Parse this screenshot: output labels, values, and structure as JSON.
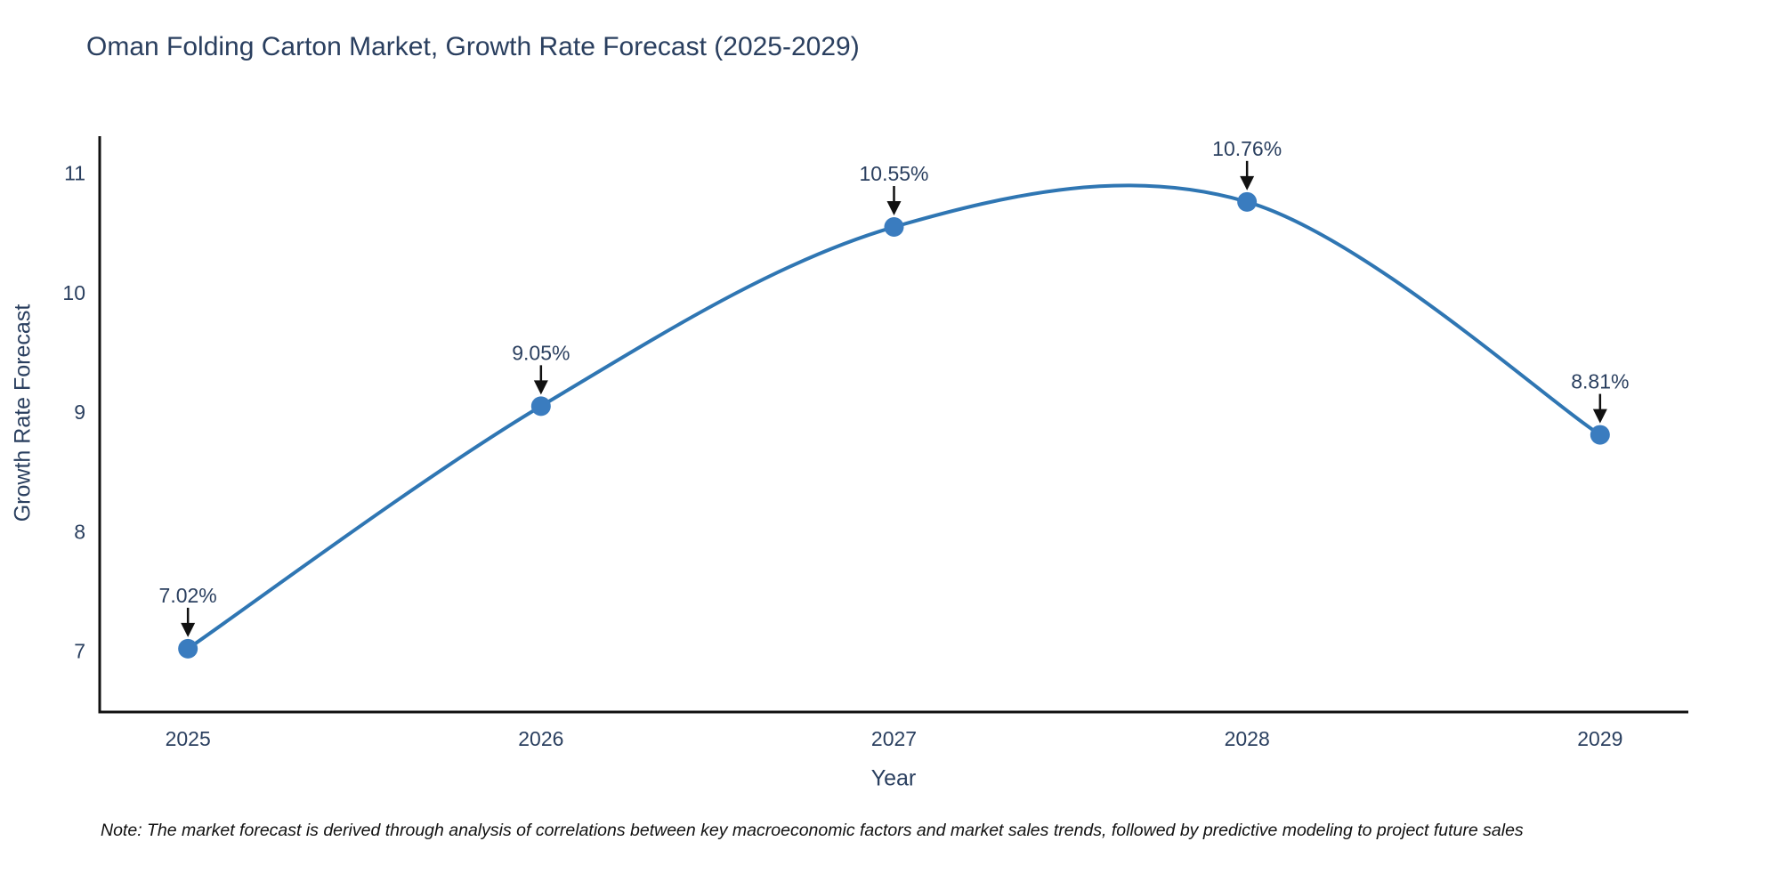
{
  "header": {
    "title": "Oman Folding Carton Market, Growth Rate Forecast (2025-2029)"
  },
  "footnote": {
    "text": "Note: The market forecast is derived through analysis of correlations between key macroeconomic factors and market sales trends, followed by predictive modeling to project future sales"
  },
  "chart_data": {
    "type": "line",
    "title": "Oman Folding Carton Market, Growth Rate Forecast (2025-2029)",
    "x": [
      2025,
      2026,
      2027,
      2028,
      2029
    ],
    "series": [
      {
        "name": "Growth Rate Forecast",
        "values": [
          7.02,
          9.05,
          10.55,
          10.76,
          8.81
        ]
      }
    ],
    "point_labels": [
      "7.02%",
      "9.05%",
      "10.55%",
      "10.76%",
      "8.81%"
    ],
    "xlabel": "Year",
    "ylabel": "Growth Rate Forecast",
    "xticks": [
      "2025",
      "2026",
      "2027",
      "2028",
      "2029"
    ],
    "yticks": [
      7,
      8,
      9,
      10,
      11
    ],
    "xlim": [
      2024.75,
      2029.25
    ],
    "ylim": [
      6.49,
      11.31
    ],
    "grid": false,
    "legend": "none",
    "line_shape": "spline",
    "colors": {
      "line": "#2f76b3",
      "marker": "#3a7cbf",
      "arrow": "#111111",
      "text": "#2a3f5f",
      "axis": "#111111"
    }
  }
}
